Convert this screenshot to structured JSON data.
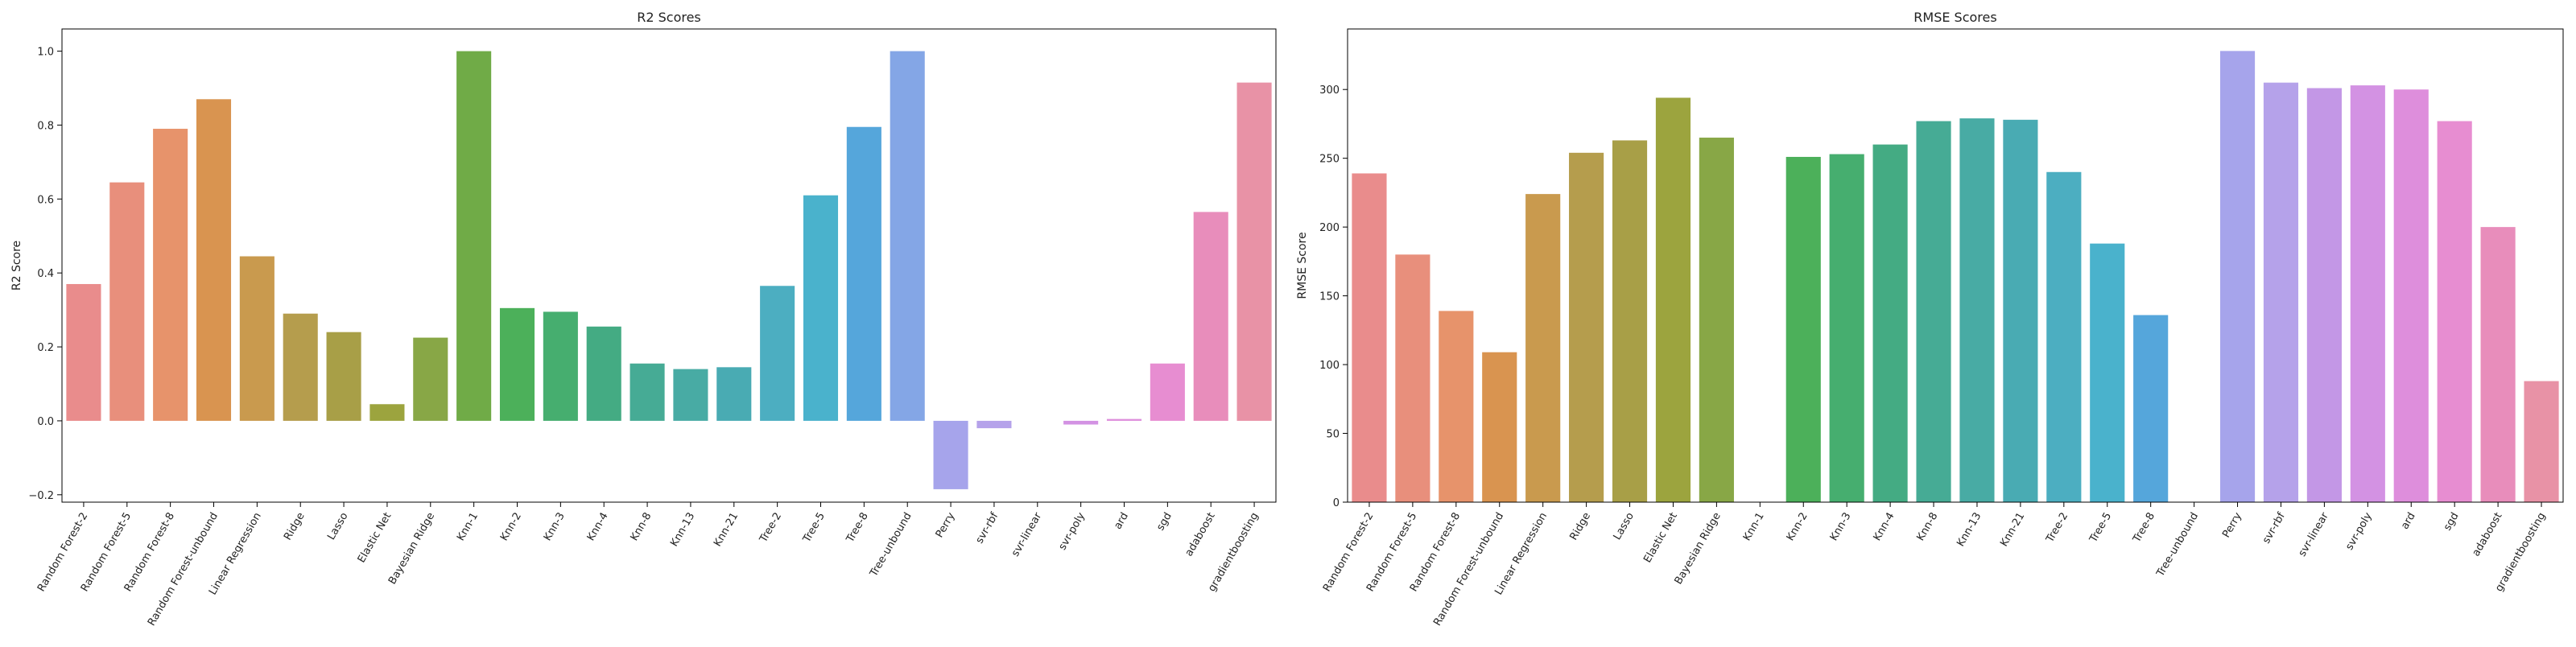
{
  "chart_data": [
    {
      "type": "bar",
      "title": "R2 Scores",
      "xlabel": "",
      "ylabel": "R2 Score",
      "ylim": [
        -0.22,
        1.06
      ],
      "yticks": [
        -0.2,
        0.0,
        0.2,
        0.4,
        0.6,
        0.8,
        1.0
      ],
      "ytick_labels": [
        "−0.2",
        "0.0",
        "0.2",
        "0.4",
        "0.6",
        "0.8",
        "1.0"
      ],
      "categories": [
        "Random Forest-2",
        "Random Forest-5",
        "Random Forest-8",
        "Random Forest-unbound",
        "Linear Regression",
        "Ridge",
        "Lasso",
        "Elastic Net",
        "Bayesian Ridge",
        "Knn-1",
        "Knn-2",
        "Knn-3",
        "Knn-4",
        "Knn-8",
        "Knn-13",
        "Knn-21",
        "Tree-2",
        "Tree-5",
        "Tree-8",
        "Tree-unbound",
        "Perry",
        "svr-rbf",
        "svr-linear",
        "svr-poly",
        "ard",
        "sgd",
        "adaboost",
        "gradientboosting"
      ],
      "values": [
        0.37,
        0.645,
        0.79,
        0.87,
        0.445,
        0.29,
        0.24,
        0.045,
        0.225,
        1.0,
        0.305,
        0.295,
        0.255,
        0.155,
        0.14,
        0.145,
        0.365,
        0.61,
        0.795,
        1.0,
        -0.185,
        -0.02,
        0.0,
        -0.01,
        0.005,
        0.155,
        0.565,
        0.915
      ],
      "colors": [
        "#e98c8c",
        "#e88f7c",
        "#e7936b",
        "#d99450",
        "#c99a4e",
        "#b59d4d",
        "#a89f47",
        "#9ca43e",
        "#88a746",
        "#70ab47",
        "#4cb05a",
        "#46ae6f",
        "#44ab83",
        "#46ab95",
        "#48aba4",
        "#49abb3",
        "#4caec1",
        "#4ab2cc",
        "#55a6db",
        "#84a6e6",
        "#a6a4eb",
        "#b5a2ea",
        "#c397e6",
        "#d392e3",
        "#de8edc",
        "#e78dd1",
        "#e88dbb",
        "#e892a6"
      ]
    },
    {
      "type": "bar",
      "title": "RMSE Scores",
      "xlabel": "",
      "ylabel": "RMSE Score",
      "ylim": [
        0,
        344
      ],
      "yticks": [
        0,
        50,
        100,
        150,
        200,
        250,
        300
      ],
      "ytick_labels": [
        "0",
        "50",
        "100",
        "150",
        "200",
        "250",
        "300"
      ],
      "categories": [
        "Random Forest-2",
        "Random Forest-5",
        "Random Forest-8",
        "Random Forest-unbound",
        "Linear Regression",
        "Ridge",
        "Lasso",
        "Elastic Net",
        "Bayesian Ridge",
        "Knn-1",
        "Knn-2",
        "Knn-3",
        "Knn-4",
        "Knn-8",
        "Knn-13",
        "Knn-21",
        "Tree-2",
        "Tree-5",
        "Tree-8",
        "Tree-unbound",
        "Perry",
        "svr-rbf",
        "svr-linear",
        "svr-poly",
        "ard",
        "sgd",
        "adaboost",
        "gradientboosting"
      ],
      "values": [
        239,
        180,
        139,
        109,
        224,
        254,
        263,
        294,
        265,
        0,
        251,
        253,
        260,
        277,
        279,
        278,
        240,
        188,
        136,
        0,
        328,
        305,
        301,
        303,
        300,
        277,
        200,
        88
      ],
      "colors": [
        "#e98c8c",
        "#e88f7c",
        "#e7936b",
        "#d99450",
        "#c99a4e",
        "#b59d4d",
        "#a89f47",
        "#9ca43e",
        "#88a746",
        "#70ab47",
        "#4cb05a",
        "#46ae6f",
        "#44ab83",
        "#46ab95",
        "#48aba4",
        "#49abb3",
        "#4caec1",
        "#4ab2cc",
        "#55a6db",
        "#84a6e6",
        "#a6a4eb",
        "#b5a2ea",
        "#c397e6",
        "#d392e3",
        "#de8edc",
        "#e78dd1",
        "#e88dbb",
        "#e892a6"
      ]
    }
  ]
}
